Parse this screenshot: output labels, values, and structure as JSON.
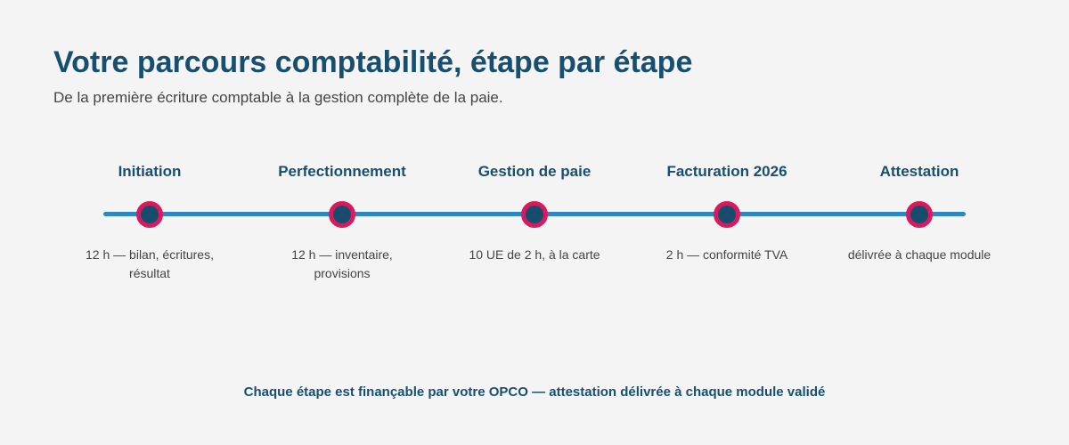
{
  "header": {
    "title": "Votre parcours comptabilité, étape par étape",
    "subtitle": "De la première écriture comptable à la gestion complète de la paie."
  },
  "colors": {
    "track": "#2f86c0",
    "dot_ring": "#d81b5f",
    "dot_fill": "#174c6d"
  },
  "timeline": {
    "steps": [
      {
        "label": "Initiation",
        "desc": "12 h — bilan, écritures, résultat"
      },
      {
        "label": "Perfectionnement",
        "desc": "12 h — inventaire, provisions"
      },
      {
        "label": "Gestion de paie",
        "desc": "10 UE de 2 h, à la carte"
      },
      {
        "label": "Facturation 2026",
        "desc": "2 h — conformité TVA"
      },
      {
        "label": "Attestation",
        "desc": "délivrée à chaque module"
      }
    ]
  },
  "footer": {
    "note": "Chaque étape est finançable par votre OPCO — attestation délivrée à chaque module validé"
  }
}
